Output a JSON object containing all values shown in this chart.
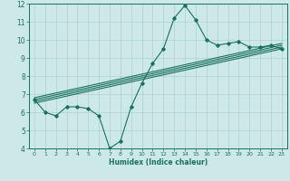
{
  "title": "",
  "xlabel": "Humidex (Indice chaleur)",
  "ylabel": "",
  "xlim": [
    -0.5,
    23.5
  ],
  "ylim": [
    4,
    12
  ],
  "yticks": [
    4,
    5,
    6,
    7,
    8,
    9,
    10,
    11,
    12
  ],
  "xticks": [
    0,
    1,
    2,
    3,
    4,
    5,
    6,
    7,
    8,
    9,
    10,
    11,
    12,
    13,
    14,
    15,
    16,
    17,
    18,
    19,
    20,
    21,
    22,
    23
  ],
  "bg_color": "#cce8e8",
  "line_color": "#1a7060",
  "grid_color": "#b0d0d0",
  "series": [
    [
      0,
      6.7
    ],
    [
      1,
      6.0
    ],
    [
      2,
      5.8
    ],
    [
      3,
      6.3
    ],
    [
      4,
      6.3
    ],
    [
      5,
      6.2
    ],
    [
      6,
      5.8
    ],
    [
      7,
      4.0
    ],
    [
      8,
      4.4
    ],
    [
      9,
      6.3
    ],
    [
      10,
      7.6
    ],
    [
      11,
      8.7
    ],
    [
      12,
      9.5
    ],
    [
      13,
      11.2
    ],
    [
      14,
      11.9
    ],
    [
      15,
      11.1
    ],
    [
      16,
      10.0
    ],
    [
      17,
      9.7
    ],
    [
      18,
      9.8
    ],
    [
      19,
      9.9
    ],
    [
      20,
      9.6
    ],
    [
      21,
      9.6
    ],
    [
      22,
      9.7
    ],
    [
      23,
      9.5
    ]
  ],
  "trend_lines": [
    [
      [
        0,
        6.5
      ],
      [
        23,
        9.5
      ]
    ],
    [
      [
        0,
        6.6
      ],
      [
        23,
        9.6
      ]
    ],
    [
      [
        0,
        6.7
      ],
      [
        23,
        9.7
      ]
    ],
    [
      [
        0,
        6.8
      ],
      [
        23,
        9.8
      ]
    ]
  ]
}
